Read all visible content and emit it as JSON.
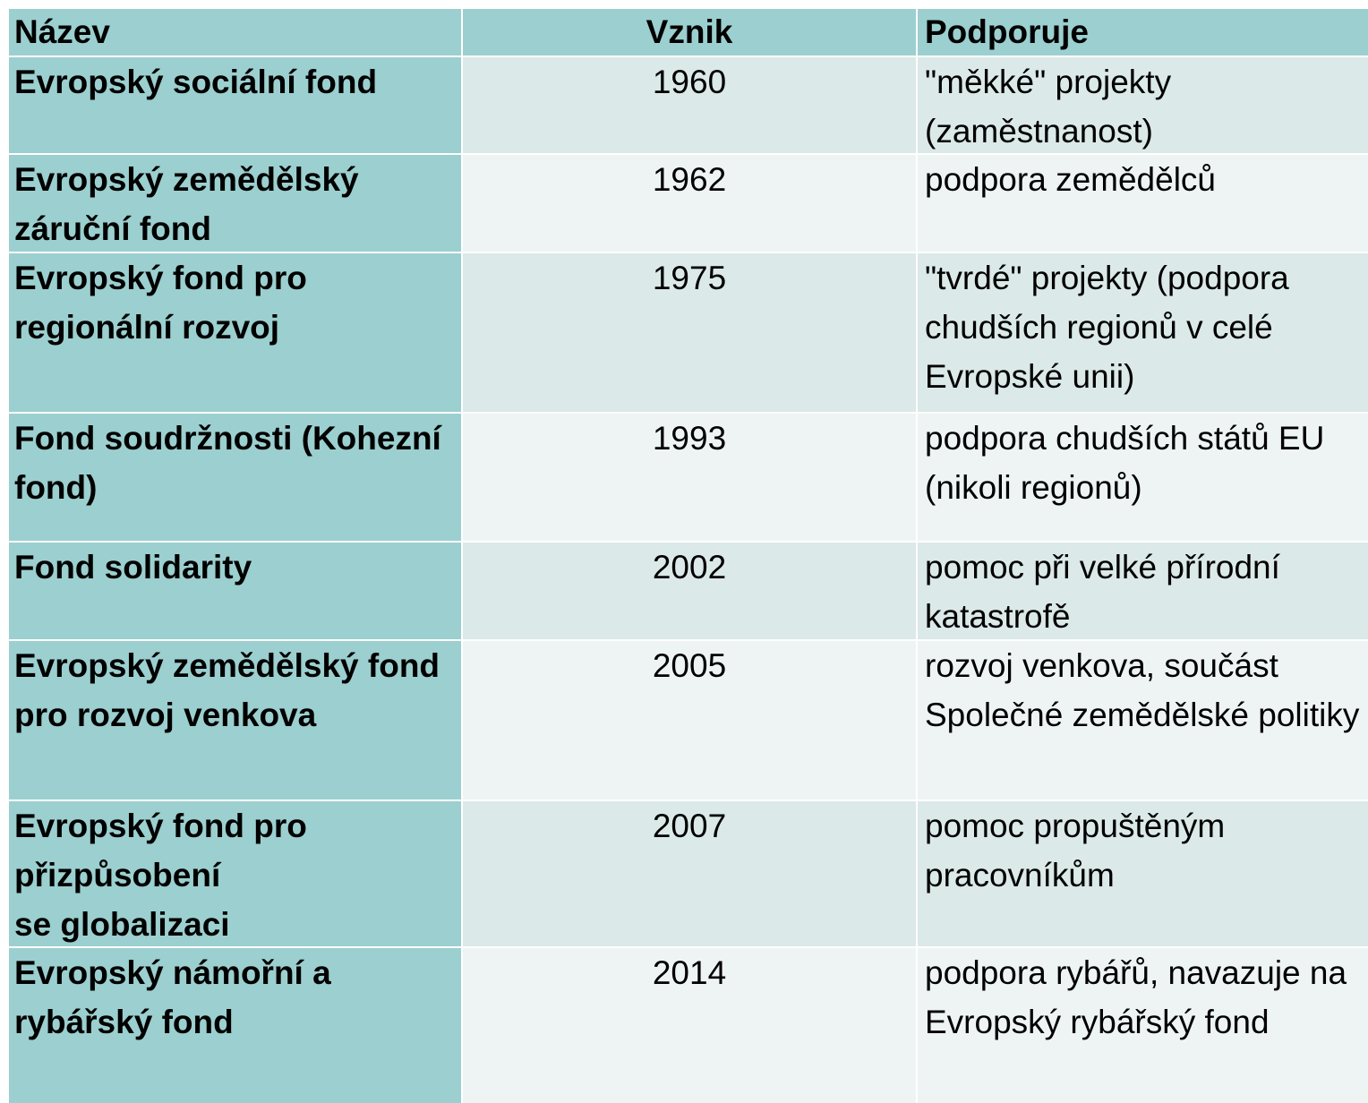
{
  "table": {
    "header": [
      "Název",
      "Vznik",
      "Podporuje"
    ],
    "rows": [
      [
        "Evropský sociální fond",
        1960,
        "\"měkké\" projekty (zaměstnanost)"
      ],
      [
        "Evropský zemědělský záruční fond",
        1962,
        "podpora zemědělců"
      ],
      [
        "Evropský fond pro regionální rozvoj",
        1975,
        "\"tvrdé\" projekty (podpora chudších regionů v celé Evropské unii)"
      ],
      [
        "Fond soudržnosti (Kohezní fond)",
        1993,
        "podpora chudších států EU (nikoli regionů)"
      ],
      [
        "Fond solidarity",
        2002,
        "pomoc při velké přírodní katastrofě"
      ],
      [
        "Evropský zemědělský fond pro rozvoj venkova",
        2005,
        "rozvoj venkova, součást Společné zemědělské politiky"
      ],
      [
        "Evropský fond pro přizpůsobení\nse globalizaci",
        2007,
        "pomoc propuštěným pracovníkům"
      ],
      [
        "Evropský námořní a rybářský fond",
        2014,
        "podpora rybářů, navazuje na Evropský rybářský fond"
      ]
    ]
  }
}
